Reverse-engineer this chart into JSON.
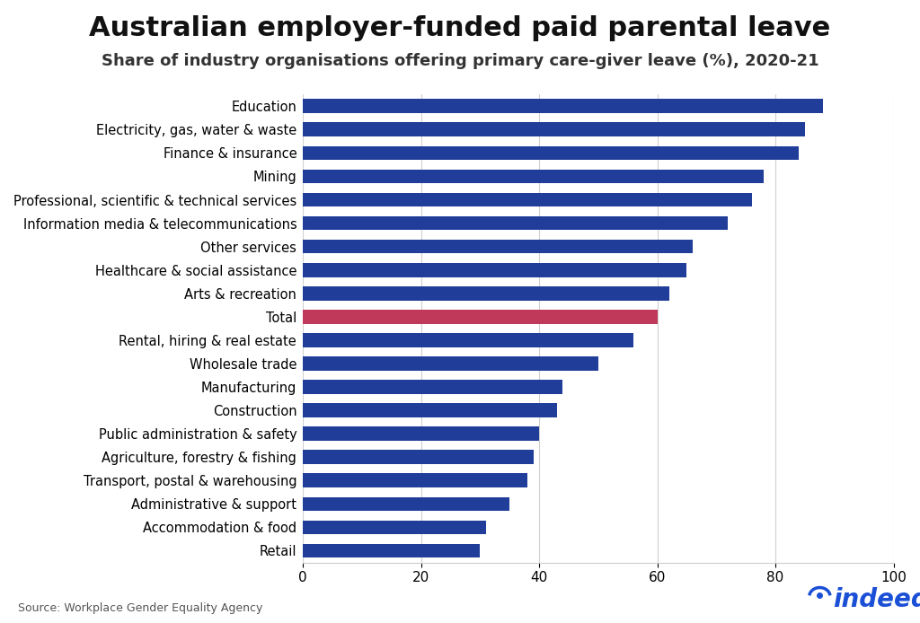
{
  "title": "Australian employer-funded paid parental leave",
  "subtitle": "Share of industry organisations offering primary care-giver leave (%), 2020-21",
  "source": "Source: Workplace Gender Equality Agency",
  "categories": [
    "Education",
    "Electricity, gas, water & waste",
    "Finance & insurance",
    "Mining",
    "Professional, scientific & technical services",
    "Information media & telecommunications",
    "Other services",
    "Healthcare & social assistance",
    "Arts & recreation",
    "Total",
    "Rental, hiring & real estate",
    "Wholesale trade",
    "Manufacturing",
    "Construction",
    "Public administration & safety",
    "Agriculture, forestry & fishing",
    "Transport, postal & warehousing",
    "Administrative & support",
    "Accommodation & food",
    "Retail"
  ],
  "values": [
    88,
    85,
    84,
    78,
    76,
    72,
    66,
    65,
    62,
    60,
    56,
    50,
    44,
    43,
    40,
    39,
    38,
    35,
    31,
    30
  ],
  "bar_colors": [
    "#1F3D99",
    "#1F3D99",
    "#1F3D99",
    "#1F3D99",
    "#1F3D99",
    "#1F3D99",
    "#1F3D99",
    "#1F3D99",
    "#1F3D99",
    "#C0395A",
    "#1F3D99",
    "#1F3D99",
    "#1F3D99",
    "#1F3D99",
    "#1F3D99",
    "#1F3D99",
    "#1F3D99",
    "#1F3D99",
    "#1F3D99",
    "#1F3D99"
  ],
  "xlim": [
    0,
    100
  ],
  "xticks": [
    0,
    20,
    40,
    60,
    80,
    100
  ],
  "background_color": "#ffffff",
  "title_fontsize": 22,
  "subtitle_fontsize": 13,
  "label_fontsize": 10.5,
  "tick_fontsize": 11,
  "bar_height": 0.6
}
